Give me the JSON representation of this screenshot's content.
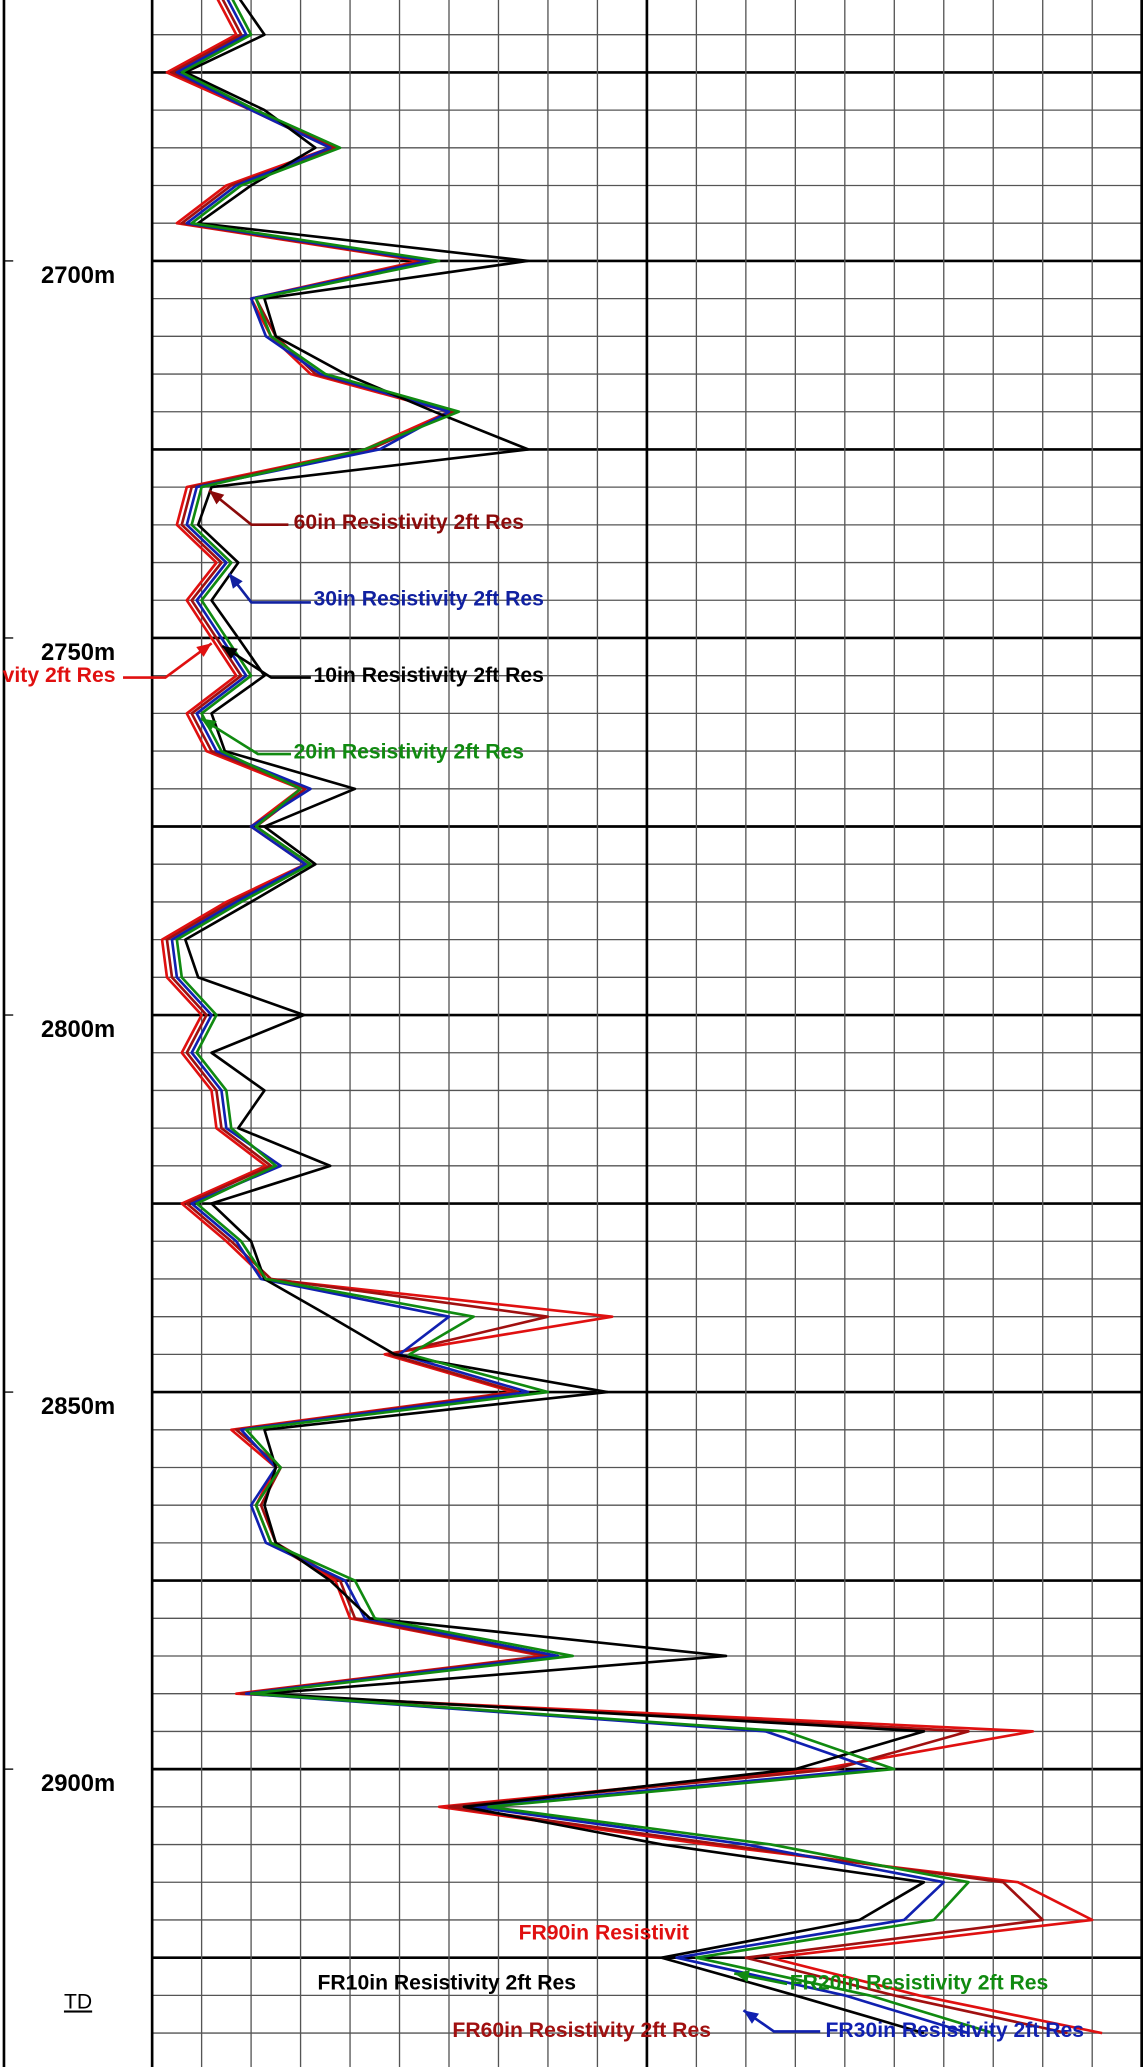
{
  "chart_data": {
    "type": "well-log",
    "ylim": [
      2665.4,
      2939.5
    ],
    "yticks": [
      {
        "value": 2700,
        "label": "2700m"
      },
      {
        "value": 2750,
        "label": "2750m"
      },
      {
        "value": 2800,
        "label": "2800m"
      },
      {
        "value": 2850,
        "label": "2850m"
      },
      {
        "value": 2900,
        "label": "2900m"
      }
    ],
    "ygrid": [
      2670,
      2675,
      2680,
      2685,
      2690,
      2695,
      2700,
      2705,
      2710,
      2715,
      2720,
      2725,
      2730,
      2735,
      2740,
      2745,
      2750,
      2755,
      2760,
      2765,
      2770,
      2775,
      2780,
      2785,
      2790,
      2795,
      2800,
      2805,
      2810,
      2815,
      2820,
      2825,
      2830,
      2835,
      2840,
      2845,
      2850,
      2855,
      2860,
      2865,
      2870,
      2875,
      2880,
      2885,
      2890,
      2895,
      2900,
      2905,
      2910,
      2915,
      2920,
      2925,
      2930,
      2935
    ],
    "ymajor": [
      2675,
      2700,
      2725,
      2750,
      2775,
      2800,
      2825,
      2850,
      2875,
      2900,
      2925
    ],
    "xlim": [
      0,
      20
    ],
    "xticks": [
      0,
      1,
      2,
      3,
      4,
      5,
      6,
      7,
      8,
      9,
      10,
      11,
      12,
      13,
      14,
      15,
      16,
      17,
      18,
      19,
      20
    ],
    "xmajor": [
      0,
      10,
      20
    ],
    "grid": true,
    "td": {
      "label": "TD",
      "depth": 2931
    },
    "depth": [
      2665,
      2670,
      2675,
      2680,
      2685,
      2690,
      2695,
      2700,
      2705,
      2710,
      2715,
      2720,
      2725,
      2730,
      2735,
      2740,
      2745,
      2750,
      2755,
      2760,
      2765,
      2770,
      2775,
      2780,
      2785,
      2790,
      2795,
      2800,
      2805,
      2810,
      2815,
      2820,
      2825,
      2830,
      2835,
      2840,
      2845,
      2850,
      2855,
      2860,
      2865,
      2870,
      2875,
      2880,
      2885,
      2890,
      2895,
      2900,
      2905,
      2910,
      2915,
      2920,
      2925,
      2930,
      2935
    ],
    "series": [
      {
        "color": "#e01010",
        "values": [
          1.3,
          1.7,
          0.3,
          2.0,
          3.6,
          1.5,
          0.5,
          5.4,
          2.0,
          2.4,
          3.2,
          6.0,
          4.3,
          0.7,
          0.5,
          1.3,
          0.7,
          1.2,
          1.7,
          0.7,
          1.1,
          3.0,
          2.0,
          3.1,
          1.5,
          0.2,
          0.3,
          1.0,
          0.6,
          1.2,
          1.3,
          2.3,
          0.6,
          1.5,
          2.3,
          9.3,
          4.7,
          7.3,
          1.6,
          2.5,
          2.1,
          2.4,
          3.7,
          4.0,
          7.9,
          1.7,
          17.8,
          13.5,
          5.8,
          11.2,
          17.5,
          19.0,
          12.5,
          15.5,
          19.2
        ]
      },
      {
        "color": "#a01010",
        "values": [
          1.4,
          1.8,
          0.4,
          2.1,
          3.7,
          1.6,
          0.6,
          5.5,
          2.1,
          2.5,
          3.3,
          6.1,
          4.4,
          0.8,
          0.6,
          1.4,
          0.8,
          1.3,
          1.8,
          0.8,
          1.2,
          3.1,
          2.1,
          3.2,
          1.6,
          0.3,
          0.4,
          1.1,
          0.7,
          1.3,
          1.4,
          2.4,
          0.7,
          1.6,
          2.4,
          8.0,
          4.8,
          7.4,
          1.7,
          2.6,
          2.2,
          2.5,
          3.8,
          4.1,
          8.0,
          1.8,
          16.5,
          13.8,
          6.0,
          11.5,
          17.2,
          18.0,
          12.0,
          15.0,
          18.5
        ]
      },
      {
        "color": "#1020b0",
        "values": [
          1.5,
          1.9,
          0.5,
          2.0,
          3.6,
          1.7,
          0.7,
          5.6,
          2.0,
          2.3,
          3.4,
          6.0,
          4.6,
          0.9,
          0.7,
          1.5,
          0.9,
          1.4,
          1.9,
          0.9,
          1.3,
          3.2,
          2.0,
          3.1,
          1.7,
          0.4,
          0.5,
          1.2,
          0.8,
          1.4,
          1.5,
          2.6,
          0.8,
          1.7,
          2.2,
          6.0,
          5.0,
          7.6,
          1.8,
          2.5,
          2.0,
          2.3,
          3.9,
          4.3,
          8.2,
          1.9,
          12.4,
          14.6,
          6.5,
          12.0,
          16.0,
          15.2,
          10.6,
          14.0,
          16.5
        ]
      },
      {
        "color": "#000000",
        "values": [
          1.74,
          2.27,
          0.67,
          2.27,
          3.3,
          2.0,
          0.93,
          7.6,
          2.27,
          2.5,
          3.9,
          5.7,
          7.6,
          1.2,
          0.93,
          1.74,
          1.2,
          1.74,
          2.27,
          1.2,
          1.47,
          4.1,
          2.27,
          3.3,
          2.0,
          0.67,
          0.93,
          3.07,
          1.2,
          2.27,
          1.74,
          3.6,
          1.2,
          2.0,
          2.27,
          3.6,
          4.9,
          9.2,
          2.27,
          2.5,
          2.27,
          2.5,
          3.6,
          4.4,
          11.6,
          2.27,
          15.6,
          13.0,
          6.3,
          10.3,
          15.6,
          14.3,
          10.3,
          13.0,
          15.6
        ]
      },
      {
        "color": "#108a10",
        "values": [
          1.6,
          2.0,
          0.6,
          2.1,
          3.8,
          1.8,
          0.8,
          5.8,
          2.1,
          2.4,
          3.5,
          6.2,
          4.3,
          1.0,
          0.8,
          1.6,
          1.0,
          1.5,
          2.0,
          1.0,
          1.4,
          3.0,
          2.1,
          3.2,
          1.8,
          0.5,
          0.6,
          1.3,
          0.9,
          1.5,
          1.6,
          2.5,
          0.9,
          1.8,
          2.3,
          6.5,
          5.2,
          8.0,
          1.9,
          2.6,
          2.1,
          2.4,
          4.1,
          4.5,
          8.5,
          2.0,
          12.8,
          15.0,
          6.8,
          12.5,
          16.5,
          15.8,
          11.0,
          14.5,
          17.0
        ]
      }
    ],
    "annotations": [
      {
        "text": "60in Resistivity 2ft Res",
        "color": "#8b0a0a"
      },
      {
        "text": "30in Resistivity 2ft Res",
        "color": "#1020a0"
      },
      {
        "text": "10in Resistivity 2ft Res",
        "color": "#000000"
      },
      {
        "text": "20in Resistivity 2ft Res",
        "color": "#108a10"
      },
      {
        "text": "vity 2ft Res",
        "color": "#e01010"
      },
      {
        "text": "FR90in Resistivit",
        "color": "#e01010"
      },
      {
        "text": "FR10in Resistivity 2ft Res",
        "color": "#000000"
      },
      {
        "text": "FR60in Resistivity 2ft Res",
        "color": "#a01010"
      },
      {
        "text": "FR20in Resistivity 2ft Res",
        "color": "#108a10"
      },
      {
        "text": "FR30in Resistivity 2ft Res",
        "color": "#1020b0"
      }
    ]
  }
}
